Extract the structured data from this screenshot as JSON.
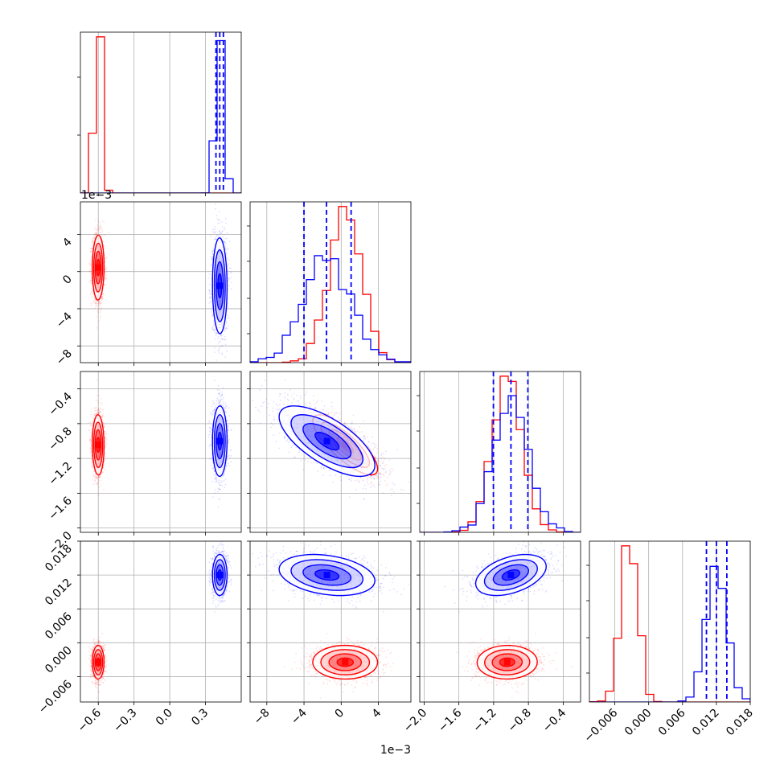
{
  "chart_data": {
    "type": "corner",
    "title": "",
    "parameters": [
      {
        "range": [
          -0.75,
          0.6
        ],
        "ticks": [
          -0.6,
          -0.3,
          0.0,
          0.3
        ],
        "tick_labels": [
          "−0.6",
          "−0.3",
          "0.0",
          "0.3"
        ],
        "offset_text": ""
      },
      {
        "range": [
          -0.0098,
          0.0075
        ],
        "ticks": [
          -0.008,
          -0.004,
          0.0,
          0.004
        ],
        "tick_labels": [
          "−8",
          "−4",
          "0",
          "4"
        ],
        "offset_text": "1e−3"
      },
      {
        "range": [
          -2.05,
          -0.2
        ],
        "ticks": [
          -2.0,
          -1.6,
          -1.2,
          -0.8,
          -0.4
        ],
        "tick_labels": [
          "−2.0",
          "−1.6",
          "−1.2",
          "−0.8",
          "−0.4"
        ],
        "offset_text": ""
      },
      {
        "range": [
          -0.0105,
          0.018
        ],
        "ticks": [
          -0.006,
          0.0,
          0.006,
          0.012,
          0.018
        ],
        "tick_labels": [
          "−0.006",
          "0.000",
          "0.006",
          "0.012",
          "0.018"
        ],
        "offset_text": ""
      }
    ],
    "series": [
      {
        "name": "",
        "color": "#ff0000",
        "means": [
          -0.6,
          0.0005,
          -1.05,
          -0.0035
        ],
        "stds": [
          0.025,
          0.0017,
          0.17,
          0.0015
        ],
        "show_quantiles": false
      },
      {
        "name": "",
        "color": "#0000ff",
        "means": [
          0.42,
          -0.0015,
          -1.0,
          0.012
        ],
        "stds": [
          0.03,
          0.0026,
          0.2,
          0.0018
        ],
        "show_quantiles": true
      }
    ],
    "correlations": {
      "red": {
        "1-2": -0.8,
        "2-3": 0.0
      },
      "blue": {
        "1-2": -0.7,
        "2-3": 0.45
      }
    },
    "quantiles": [
      0.16,
      0.5,
      0.84
    ],
    "grid": true,
    "legend": "none"
  }
}
